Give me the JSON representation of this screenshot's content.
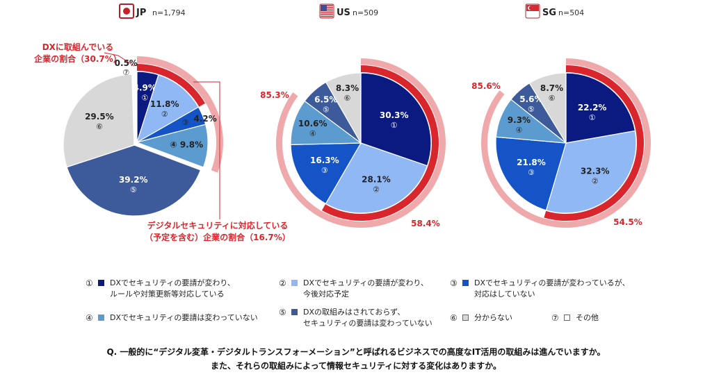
{
  "colors": {
    "s1": "#0a1a80",
    "s2": "#8fb8f4",
    "s3": "#1554c6",
    "s4": "#5b9bd0",
    "s5": "#3d5a9a",
    "s6": "#d8d8d8",
    "s7": "#ffffff",
    "ring_dark": "#d9262c",
    "ring_light": "#f0a9ab",
    "accent_text": "#d9262c"
  },
  "chart_data": [
    {
      "type": "pie",
      "country": "JP",
      "flag": "jp-flag-icon",
      "n_label": "n=1,794",
      "categories": [
        "①",
        "②",
        "③",
        "④",
        "⑤",
        "⑥",
        "⑦"
      ],
      "values": [
        4.9,
        11.8,
        4.2,
        9.8,
        39.2,
        29.5,
        0.5
      ],
      "value_labels": [
        "4.9%",
        "11.8%",
        "4.2%",
        "9.8%",
        "39.2%",
        "29.5%",
        "0.5%"
      ],
      "highlight": {
        "inner": {
          "value": 16.7,
          "label": "デジタルセキュリティに対応している\n（予定を含む）企業の割合（16.7%）"
        },
        "outer": {
          "value": 30.7,
          "label": "DXに取組んでいる\n企業の割合（30.7%）"
        }
      }
    },
    {
      "type": "pie",
      "country": "US",
      "flag": "us-flag-icon",
      "n_label": "n=509",
      "categories": [
        "①",
        "②",
        "③",
        "④",
        "⑤",
        "⑥"
      ],
      "values": [
        30.3,
        28.1,
        16.3,
        10.6,
        6.5,
        8.3
      ],
      "value_labels": [
        "30.3%",
        "28.1%",
        "16.3%",
        "10.6%",
        "6.5%",
        "8.3%"
      ],
      "highlight": {
        "inner": {
          "value": 58.4,
          "label": "58.4%"
        },
        "outer": {
          "value": 85.3,
          "label": "85.3%"
        }
      }
    },
    {
      "type": "pie",
      "country": "SG",
      "flag": "sg-flag-icon",
      "n_label": "n=504",
      "categories": [
        "①",
        "②",
        "③",
        "④",
        "⑤",
        "⑥"
      ],
      "values": [
        22.2,
        32.3,
        21.8,
        9.3,
        5.6,
        8.7
      ],
      "value_labels": [
        "22.2%",
        "32.3%",
        "21.8%",
        "9.3%",
        "5.6%",
        "8.7%"
      ],
      "highlight": {
        "inner": {
          "value": 54.5,
          "label": "54.5%"
        },
        "outer": {
          "value": 85.6,
          "label": "85.6%"
        }
      }
    }
  ],
  "legend": [
    {
      "num": "①",
      "text": "DXでセキュリティの要請が変わり、\nルールや対策更新等対応している",
      "color": "#0a1a80"
    },
    {
      "num": "②",
      "text": "DXでセキュリティの要請が変わり、\n今後対応予定",
      "color": "#8fb8f4"
    },
    {
      "num": "③",
      "text": "DXでセキュリティの要請が変わっているが、\n対応はしていない",
      "color": "#1554c6"
    },
    {
      "num": "④",
      "text": "DXでセキュリティの要請は変わっていない",
      "color": "#5b9bd0"
    },
    {
      "num": "⑤",
      "text": "DXの取組みはされておらず、\nセキュリティの要請は変わっていない",
      "color": "#3d5a9a"
    },
    {
      "num": "⑥",
      "text": "分からない",
      "color": "#d8d8d8"
    },
    {
      "num": "⑦",
      "text": "その他",
      "color": "#ffffff"
    }
  ],
  "question": {
    "line1": "Q. 一般的に“デジタル変革・デジタルトランスフォーメーション”と呼ばれるビジネスでの高度なIT活用の取組みは進んでいますか。",
    "line2": "また、それらの取組みによって情報セキュリティに対する変化はありますか。"
  }
}
